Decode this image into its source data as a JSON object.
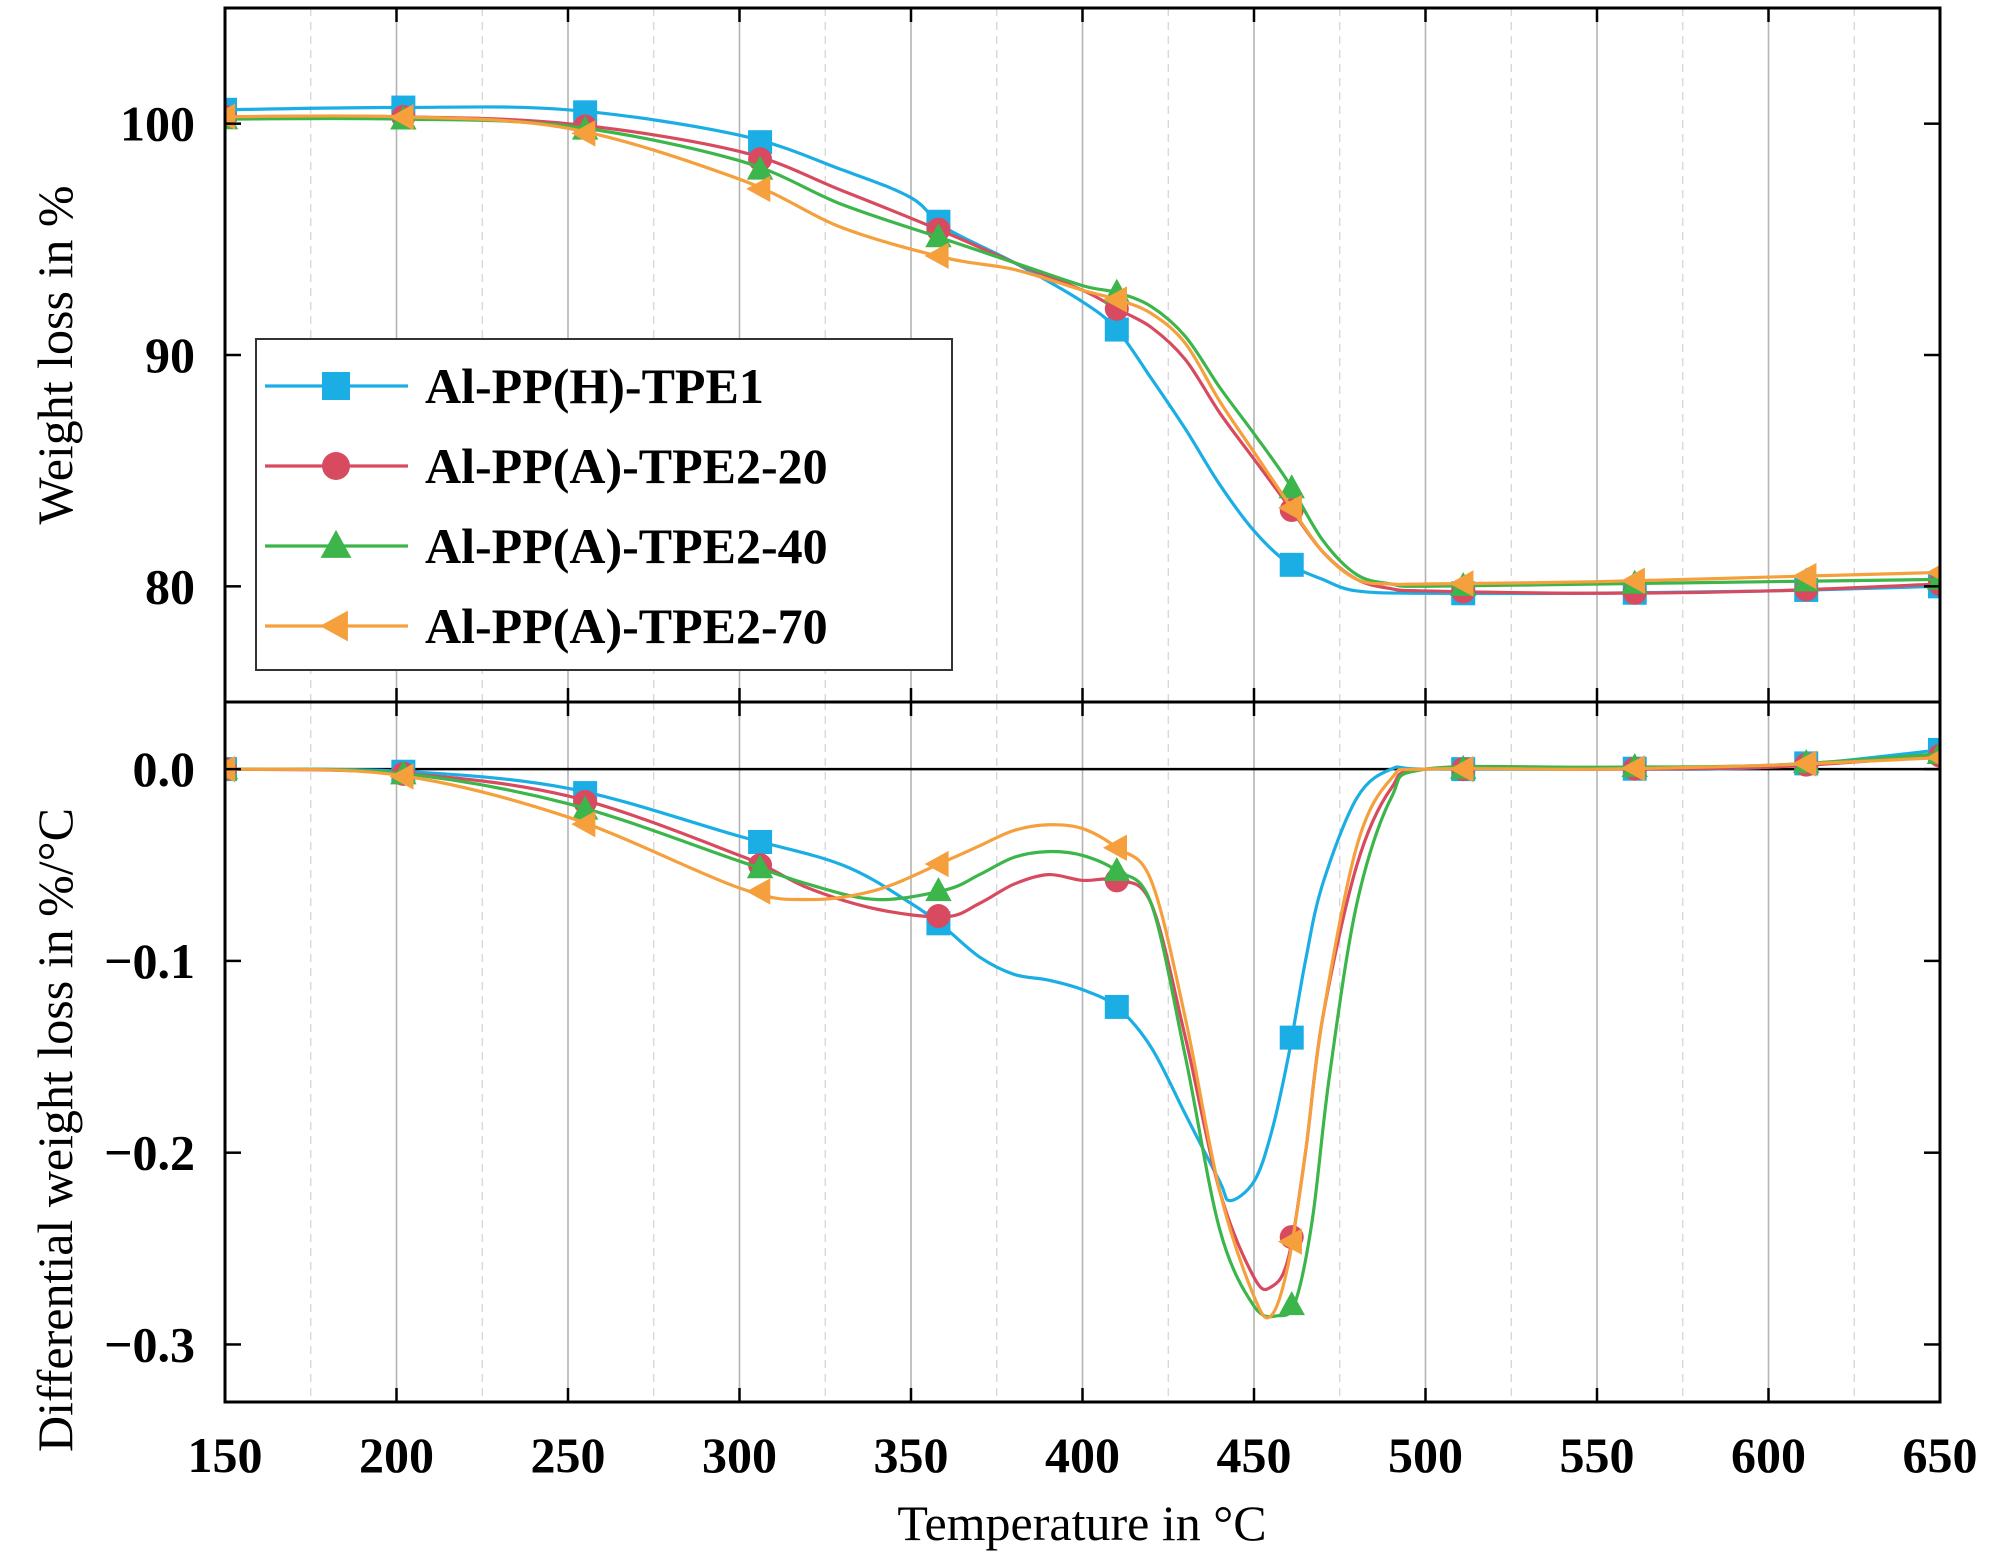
{
  "chart_data": {
    "type": "line",
    "x_label": "Temperature in °C",
    "x_range": [
      150,
      650
    ],
    "x_ticks": [
      "150",
      "200",
      "250",
      "300",
      "350",
      "400",
      "450",
      "500",
      "550",
      "600",
      "650"
    ],
    "grid": "vertical",
    "legend_position": "upper-left of top panel",
    "series_meta": [
      {
        "name": "Al-PP(H)-TPE1",
        "color": "#1aaee5",
        "marker": "square"
      },
      {
        "name": "Al-PP(A)-TPE2-20",
        "color": "#d84a5f",
        "marker": "circle"
      },
      {
        "name": "Al-PP(A)-TPE2-40",
        "color": "#3cb54a",
        "marker": "triangle-up"
      },
      {
        "name": "Al-PP(A)-TPE2-70",
        "color": "#f5a03c",
        "marker": "triangle-left"
      }
    ],
    "panels": [
      {
        "id": "tga",
        "y_label": "Weight loss in %",
        "y_range": [
          75,
          105
        ],
        "y_ticks": [
          "80",
          "90",
          "100"
        ],
        "series": [
          {
            "x": [
              150,
              200,
              250,
              300,
              330,
              350,
              360,
              380,
              400,
              410,
              420,
              430,
              440,
              450,
              460,
              470,
              480,
              500,
              550,
              600,
              650
            ],
            "y": [
              100.6,
              100.7,
              100.6,
              99.5,
              98.0,
              96.8,
              95.5,
              94.0,
              92.3,
              91.1,
              89.0,
              86.8,
              84.4,
              82.4,
              81.0,
              80.3,
              79.8,
              79.7,
              79.7,
              79.8,
              80.0
            ]
          },
          {
            "x": [
              150,
              200,
              250,
              300,
              330,
              360,
              380,
              400,
              410,
              420,
              430,
              440,
              450,
              460,
              470,
              480,
              490,
              500,
              550,
              600,
              650
            ],
            "y": [
              100.3,
              100.3,
              100.0,
              98.8,
              97.1,
              95.3,
              94.0,
              92.8,
              92.0,
              91.2,
              89.8,
              87.5,
              85.5,
              83.5,
              81.5,
              80.3,
              79.9,
              79.8,
              79.7,
              79.8,
              80.1
            ]
          },
          {
            "x": [
              150,
              200,
              250,
              300,
              330,
              360,
              380,
              400,
              410,
              420,
              430,
              440,
              450,
              460,
              470,
              480,
              490,
              500,
              550,
              600,
              650
            ],
            "y": [
              100.2,
              100.2,
              99.9,
              98.4,
              96.5,
              95.0,
              94.0,
              93.0,
              92.7,
              92.1,
              90.8,
              88.6,
              86.6,
              84.5,
              82.0,
              80.5,
              80.1,
              80.0,
              80.1,
              80.2,
              80.3
            ]
          },
          {
            "x": [
              150,
              200,
              250,
              300,
              330,
              360,
              380,
              400,
              410,
              420,
              430,
              440,
              450,
              460,
              470,
              480,
              490,
              500,
              550,
              600,
              650
            ],
            "y": [
              100.3,
              100.3,
              99.8,
              97.6,
              95.5,
              94.2,
              93.7,
              92.8,
              92.4,
              91.8,
              90.5,
              88.0,
              85.8,
              83.6,
              81.5,
              80.3,
              80.1,
              80.1,
              80.2,
              80.4,
              80.6
            ]
          }
        ]
      },
      {
        "id": "dtg",
        "y_label": "Differential weight loss in %/°C",
        "y_range": [
          -0.33,
          0.035
        ],
        "y_ticks": [
          "0.0",
          "−0.1",
          "−0.2",
          "−0.3"
        ],
        "zero_line": true,
        "series": [
          {
            "x": [
              150,
              200,
              250,
              300,
              330,
              350,
              360,
              370,
              380,
              390,
              400,
              410,
              420,
              430,
              440,
              443,
              450,
              455,
              460,
              465,
              470,
              480,
              490,
              500,
              550,
              600,
              650
            ],
            "y": [
              0.0,
              -0.001,
              -0.01,
              -0.035,
              -0.05,
              -0.07,
              -0.083,
              -0.098,
              -0.107,
              -0.11,
              -0.115,
              -0.124,
              -0.145,
              -0.18,
              -0.215,
              -0.225,
              -0.215,
              -0.19,
              -0.15,
              -0.1,
              -0.06,
              -0.015,
              0.0,
              0.0,
              0.0,
              0.001,
              0.01
            ]
          },
          {
            "x": [
              150,
              200,
              250,
              300,
              320,
              340,
              360,
              370,
              380,
              390,
              400,
              410,
              420,
              430,
              440,
              450,
              455,
              460,
              465,
              470,
              480,
              490,
              500,
              550,
              600,
              650
            ],
            "y": [
              0.0,
              -0.002,
              -0.014,
              -0.045,
              -0.062,
              -0.073,
              -0.077,
              -0.07,
              -0.06,
              -0.055,
              -0.058,
              -0.058,
              -0.07,
              -0.14,
              -0.22,
              -0.265,
              -0.27,
              -0.255,
              -0.2,
              -0.13,
              -0.05,
              -0.01,
              0.0,
              0.0,
              0.001,
              0.007
            ]
          },
          {
            "x": [
              150,
              200,
              250,
              300,
              320,
              340,
              360,
              370,
              380,
              390,
              400,
              410,
              420,
              430,
              440,
              450,
              457,
              462,
              467,
              472,
              480,
              490,
              500,
              550,
              600,
              650
            ],
            "y": [
              0.0,
              -0.002,
              -0.018,
              -0.048,
              -0.06,
              -0.068,
              -0.063,
              -0.055,
              -0.046,
              -0.043,
              -0.045,
              -0.053,
              -0.07,
              -0.15,
              -0.24,
              -0.28,
              -0.285,
              -0.278,
              -0.235,
              -0.16,
              -0.07,
              -0.015,
              0.0,
              0.001,
              0.002,
              0.008
            ]
          },
          {
            "x": [
              150,
              200,
              250,
              300,
              320,
              340,
              360,
              370,
              380,
              390,
              400,
              410,
              420,
              430,
              440,
              450,
              455,
              460,
              465,
              470,
              480,
              490,
              500,
              550,
              600,
              650
            ],
            "y": [
              0.0,
              -0.003,
              -0.025,
              -0.062,
              -0.068,
              -0.063,
              -0.048,
              -0.04,
              -0.032,
              -0.029,
              -0.031,
              -0.041,
              -0.058,
              -0.13,
              -0.22,
              -0.275,
              -0.285,
              -0.258,
              -0.2,
              -0.13,
              -0.04,
              -0.005,
              0.0,
              0.0,
              0.002,
              0.006
            ]
          }
        ]
      }
    ]
  }
}
